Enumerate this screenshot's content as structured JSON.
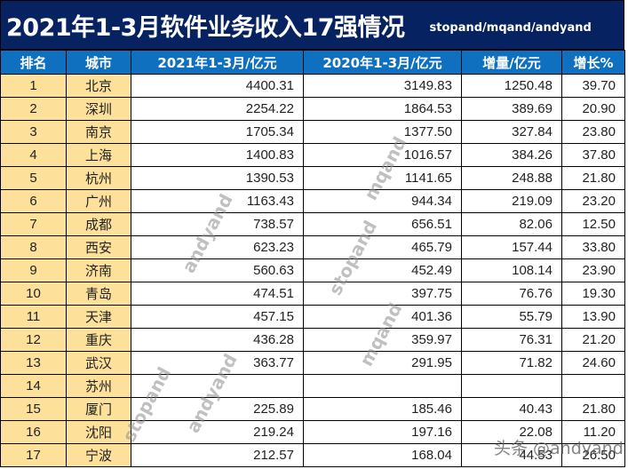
{
  "title": {
    "main": "2021年1-3月软件业务收入17强情况",
    "sub": "stopand/mqand/andyand"
  },
  "table": {
    "headers": [
      "排名",
      "城市",
      "2021年1-3月/亿元",
      "2020年1-3月/亿元",
      "增量/亿元",
      "增长%"
    ],
    "rows": [
      {
        "rank": "1",
        "city": "北京",
        "y2021": "4400.31",
        "y2020": "3149.83",
        "increase": "1250.48",
        "growth": "39.70"
      },
      {
        "rank": "2",
        "city": "深圳",
        "y2021": "2254.22",
        "y2020": "1864.53",
        "increase": "389.69",
        "growth": "20.90"
      },
      {
        "rank": "3",
        "city": "南京",
        "y2021": "1705.34",
        "y2020": "1377.50",
        "increase": "327.84",
        "growth": "23.80"
      },
      {
        "rank": "4",
        "city": "上海",
        "y2021": "1400.83",
        "y2020": "1016.57",
        "increase": "384.26",
        "growth": "37.80"
      },
      {
        "rank": "5",
        "city": "杭州",
        "y2021": "1390.53",
        "y2020": "1141.65",
        "increase": "248.88",
        "growth": "21.80"
      },
      {
        "rank": "6",
        "city": "广州",
        "y2021": "1163.43",
        "y2020": "944.34",
        "increase": "219.09",
        "growth": "23.20"
      },
      {
        "rank": "7",
        "city": "成都",
        "y2021": "738.57",
        "y2020": "656.51",
        "increase": "82.06",
        "growth": "12.50"
      },
      {
        "rank": "8",
        "city": "西安",
        "y2021": "623.23",
        "y2020": "465.79",
        "increase": "157.44",
        "growth": "33.80"
      },
      {
        "rank": "9",
        "city": "济南",
        "y2021": "560.63",
        "y2020": "452.49",
        "increase": "108.14",
        "growth": "23.90"
      },
      {
        "rank": "10",
        "city": "青岛",
        "y2021": "474.51",
        "y2020": "397.75",
        "increase": "76.76",
        "growth": "19.30"
      },
      {
        "rank": "11",
        "city": "天津",
        "y2021": "457.15",
        "y2020": "401.36",
        "increase": "55.79",
        "growth": "13.90"
      },
      {
        "rank": "12",
        "city": "重庆",
        "y2021": "436.28",
        "y2020": "359.97",
        "increase": "76.31",
        "growth": "21.20"
      },
      {
        "rank": "13",
        "city": "武汉",
        "y2021": "363.77",
        "y2020": "291.95",
        "increase": "71.82",
        "growth": "24.60"
      },
      {
        "rank": "14",
        "city": "苏州",
        "y2021": "",
        "y2020": "",
        "increase": "",
        "growth": ""
      },
      {
        "rank": "15",
        "city": "厦门",
        "y2021": "225.89",
        "y2020": "185.46",
        "increase": "40.43",
        "growth": "21.80"
      },
      {
        "rank": "16",
        "city": "沈阳",
        "y2021": "219.24",
        "y2020": "197.16",
        "increase": "22.08",
        "growth": "11.20"
      },
      {
        "rank": "17",
        "city": "宁波",
        "y2021": "212.57",
        "y2020": "168.04",
        "increase": "44.53",
        "growth": "26.50"
      }
    ]
  },
  "watermarks": {
    "mqand": "mqand",
    "andyand": "andyand",
    "stopand": "stopand",
    "footer": "头条 @andyand"
  },
  "colors": {
    "title_bg": "#062260",
    "header_bg": "#1070c0",
    "rank_city_bg": "#fde09a"
  }
}
